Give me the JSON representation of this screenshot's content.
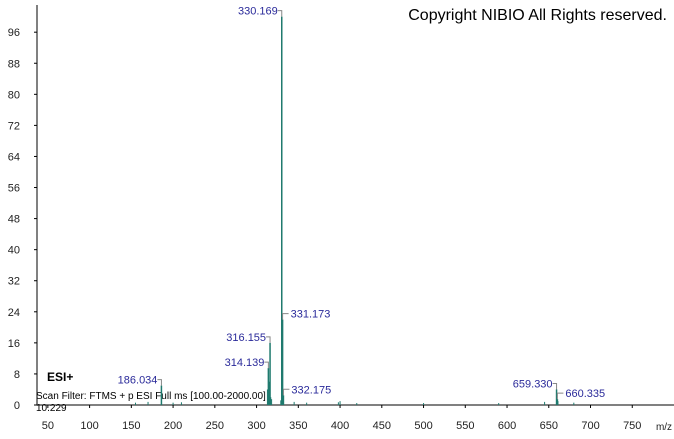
{
  "chart_data": {
    "type": "spectrum",
    "title": "Copyright NIBIO All Rights reserved.",
    "annotations": [
      "ESI+",
      "Scan Filter: FTMS + p ESI Full ms [100.00-2000.00]",
      "10.229"
    ],
    "x_label": "m/z",
    "xlim": [
      37,
      800
    ],
    "xticks": [
      50,
      100,
      150,
      200,
      250,
      300,
      350,
      400,
      450,
      500,
      550,
      600,
      650,
      700,
      750
    ],
    "ylim": [
      0,
      103
    ],
    "yticks": [
      0,
      8,
      16,
      24,
      32,
      40,
      48,
      56,
      64,
      72,
      80,
      88,
      96
    ],
    "color": "#1f7a6e",
    "label_color": "#2a2a9a",
    "peaks": {
      "x": [
        186.034,
        314.139,
        316.155,
        330.169,
        331.173,
        332.175,
        659.33,
        660.335
      ],
      "values": [
        5,
        9.5,
        16,
        100,
        22,
        2.5,
        4,
        1.5
      ],
      "value_labels": [
        "186.034",
        "314.139",
        "316.155",
        "330.169",
        "331.173",
        "332.175",
        "659.330",
        "660.335"
      ]
    },
    "minor_peaks": {
      "x": [
        155,
        170,
        200,
        210,
        313,
        315,
        317,
        318,
        329,
        345,
        360,
        398,
        400,
        420,
        500,
        590,
        645,
        661,
        680
      ],
      "values": [
        0.6,
        0.8,
        0.6,
        0.7,
        4,
        6,
        2,
        1.5,
        1.2,
        0.8,
        0.6,
        0.7,
        1,
        0.5,
        0.5,
        0.5,
        0.8,
        1,
        0.6
      ]
    }
  }
}
